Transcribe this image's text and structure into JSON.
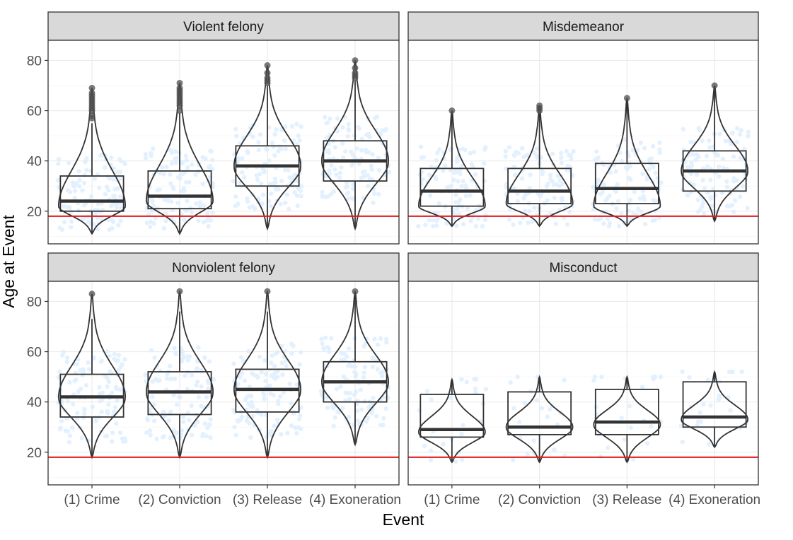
{
  "chart_data": {
    "type": "violin-box",
    "xlabel": "Event",
    "ylabel": "Age at Event",
    "categories": [
      "(1) Crime",
      "(2) Conviction",
      "(3) Release",
      "(4) Exoneration"
    ],
    "ylim": [
      7,
      88
    ],
    "yticks": [
      20,
      40,
      60,
      80
    ],
    "reference_line": {
      "y": 18,
      "color": "#e31a1c"
    },
    "grid": true,
    "colors": {
      "strip_fill": "#d9d9d9",
      "jitter": "#ddeeff",
      "outline": "#333333",
      "median": "#333333",
      "outlier": "#4d4d4d"
    },
    "panels": [
      {
        "title": "Violent felony",
        "series": [
          {
            "category": "(1) Crime",
            "min": 11,
            "q1": 20,
            "median": 24,
            "q3": 34,
            "max": 55,
            "vmax": 69,
            "peak": 22,
            "outliers": [
              57,
              58,
              60,
              61,
              62,
              63,
              64,
              65,
              66,
              67,
              69
            ]
          },
          {
            "category": "(2) Conviction",
            "min": 11,
            "q1": 21,
            "median": 26,
            "q3": 36,
            "max": 59,
            "vmax": 71,
            "peak": 24,
            "outliers": [
              60,
              62,
              63,
              64,
              65,
              66,
              67,
              68,
              69,
              71
            ]
          },
          {
            "category": "(3) Release",
            "min": 13,
            "q1": 30,
            "median": 38,
            "q3": 46,
            "max": 70,
            "vmax": 78,
            "peak": 38,
            "outliers": [
              71,
              72,
              73,
              75,
              78
            ]
          },
          {
            "category": "(4) Exoneration",
            "min": 13,
            "q1": 32,
            "median": 40,
            "q3": 48,
            "max": 72,
            "vmax": 80,
            "peak": 40,
            "outliers": [
              73,
              74,
              75,
              77,
              80
            ]
          }
        ]
      },
      {
        "title": "Misdemeanor",
        "series": [
          {
            "category": "(1) Crime",
            "min": 14,
            "q1": 22,
            "median": 28,
            "q3": 37,
            "max": 59,
            "vmax": 60,
            "peak": 22,
            "outliers": [
              60
            ]
          },
          {
            "category": "(2) Conviction",
            "min": 14,
            "q1": 23,
            "median": 28,
            "q3": 37,
            "max": 59,
            "vmax": 62,
            "peak": 23,
            "outliers": [
              60,
              61,
              62
            ]
          },
          {
            "category": "(3) Release",
            "min": 14,
            "q1": 23,
            "median": 29,
            "q3": 39,
            "max": 63,
            "vmax": 65,
            "peak": 22,
            "outliers": [
              65
            ]
          },
          {
            "category": "(4) Exoneration",
            "min": 16,
            "q1": 28,
            "median": 36,
            "q3": 44,
            "max": 68,
            "vmax": 70,
            "peak": 36,
            "outliers": [
              70
            ]
          }
        ]
      },
      {
        "title": "Nonviolent felony",
        "series": [
          {
            "category": "(1) Crime",
            "min": 18,
            "q1": 34,
            "median": 42,
            "q3": 51,
            "max": 73,
            "vmax": 83,
            "peak": 42,
            "outliers": [
              83
            ]
          },
          {
            "category": "(2) Conviction",
            "min": 18,
            "q1": 35,
            "median": 44,
            "q3": 52,
            "max": 76,
            "vmax": 84,
            "peak": 44,
            "outliers": [
              84
            ]
          },
          {
            "category": "(3) Release",
            "min": 18,
            "q1": 36,
            "median": 45,
            "q3": 53,
            "max": 76,
            "vmax": 84,
            "peak": 45,
            "outliers": [
              84
            ]
          },
          {
            "category": "(4) Exoneration",
            "min": 23,
            "q1": 40,
            "median": 48,
            "q3": 56,
            "max": 82,
            "vmax": 84,
            "peak": 48,
            "outliers": [
              84
            ]
          }
        ]
      },
      {
        "title": "Misconduct",
        "series": [
          {
            "category": "(1) Crime",
            "min": 16,
            "q1": 26,
            "median": 29,
            "q3": 43,
            "max": 49,
            "vmax": 49,
            "peak": 28,
            "outliers": []
          },
          {
            "category": "(2) Conviction",
            "min": 16,
            "q1": 27,
            "median": 30,
            "q3": 44,
            "max": 50,
            "vmax": 50,
            "peak": 30,
            "outliers": []
          },
          {
            "category": "(3) Release",
            "min": 16,
            "q1": 27,
            "median": 32,
            "q3": 45,
            "max": 50,
            "vmax": 50,
            "peak": 31,
            "outliers": []
          },
          {
            "category": "(4) Exoneration",
            "min": 22,
            "q1": 30,
            "median": 34,
            "q3": 48,
            "max": 52,
            "vmax": 52,
            "peak": 33,
            "outliers": []
          }
        ]
      }
    ]
  }
}
